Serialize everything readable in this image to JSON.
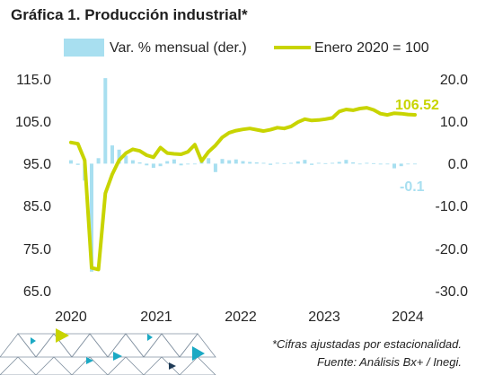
{
  "chart_data": {
    "type": "bar+line",
    "title": "Gráfica 1. Producción industrial*",
    "legend": [
      "Var. % mensual (der.)",
      "Enero 2020 = 100"
    ],
    "left_axis": {
      "ticks": [
        "115.0",
        "105.0",
        "95.0",
        "85.0",
        "75.0",
        "65.0"
      ],
      "ylim": [
        65,
        115
      ]
    },
    "right_axis": {
      "ticks": [
        "20.0",
        "10.0",
        "0.0",
        "-10.0",
        "-20.0",
        "-30.0"
      ],
      "ylim": [
        -30,
        20
      ]
    },
    "x_ticks": [
      "2020",
      "2021",
      "2022",
      "2023",
      "2024"
    ],
    "series": [
      {
        "name": "Var. % mensual (der.)",
        "axis": "right",
        "color": "#a8dff0",
        "values": [
          0.8,
          -0.3,
          -4.0,
          -25.5,
          1.3,
          20.2,
          4.3,
          3.3,
          1.9,
          0.8,
          0.3,
          -0.4,
          -1.0,
          -0.6,
          0.6,
          1.0,
          -0.4,
          -0.2,
          -0.1,
          0.6,
          1.3,
          -2.0,
          1.1,
          0.8,
          1.0,
          0.6,
          0.4,
          0.3,
          0.2,
          -0.3,
          0.2,
          0.1,
          0.2,
          0.5,
          0.9,
          -0.3,
          0.2,
          0.1,
          0.2,
          0.4,
          0.9,
          0.3,
          -0.1,
          0.2,
          0.1,
          -0.2,
          -0.1,
          -1.1,
          -0.6,
          0.0,
          -0.1
        ],
        "end_label": "-0.1"
      },
      {
        "name": "Enero 2020 = 100",
        "axis": "left",
        "color": "#c8d400",
        "values": [
          100.0,
          99.7,
          95.8,
          70.4,
          70.0,
          88.0,
          92.5,
          95.8,
          97.5,
          98.4,
          98.0,
          97.0,
          96.5,
          98.8,
          97.5,
          97.3,
          97.2,
          97.8,
          99.5,
          95.6,
          97.8,
          99.3,
          101.2,
          102.3,
          102.8,
          103.1,
          103.3,
          103.0,
          102.7,
          103.0,
          103.5,
          103.3,
          103.8,
          104.8,
          105.5,
          105.2,
          105.3,
          105.5,
          105.8,
          107.3,
          107.8,
          107.6,
          108.0,
          108.2,
          107.7,
          106.8,
          106.5,
          106.9,
          106.8,
          106.6,
          106.52
        ],
        "end_label": "106.52"
      }
    ]
  },
  "footnote": {
    "line1": "*Cifras ajustadas por estacionalidad.",
    "line2": "Fuente: Análisis Bx+ /  Inegi."
  },
  "colors": {
    "accent_green": "#c8d400",
    "bar_blue": "#a8dff0",
    "text": "#262626",
    "deco_dark": "#1e3a56",
    "deco_teal": "#1ba9c4"
  }
}
